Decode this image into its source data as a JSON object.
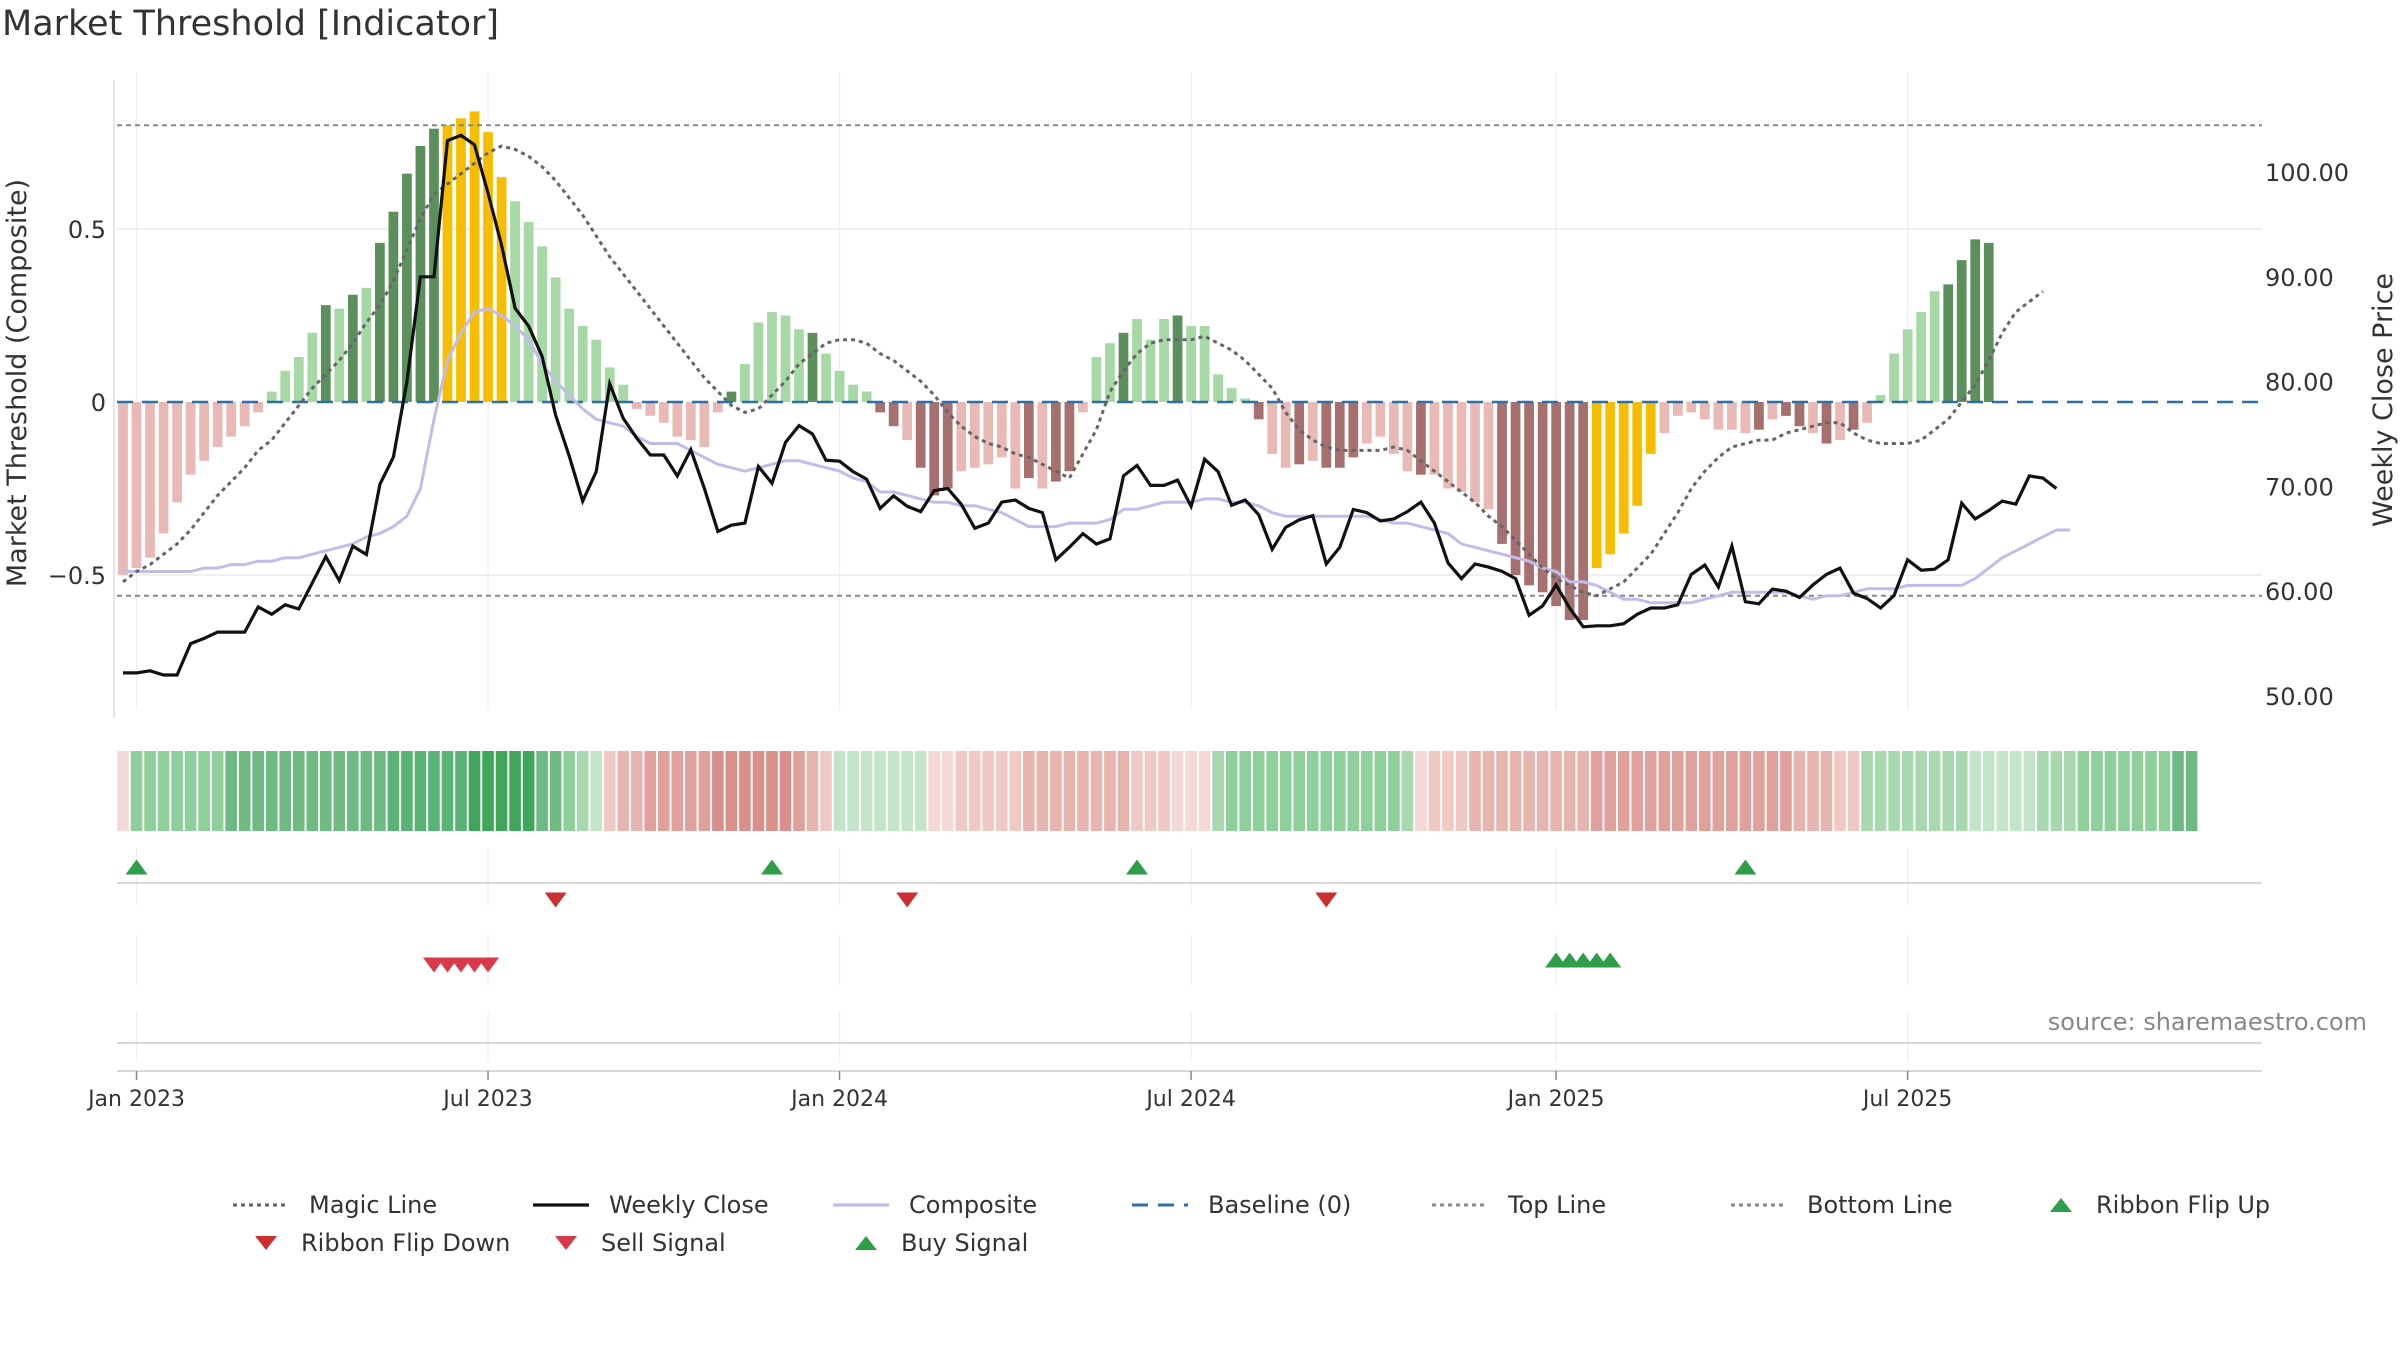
{
  "title": "Market Threshold [Indicator]",
  "source": "source: sharemaestro.com",
  "colors": {
    "bull_dark": "#5b8f5b",
    "bull_light": "#a6d9a6",
    "bear_dark": "#a6706e",
    "bear_light": "#e8b9b5",
    "extreme": "#f7bd00",
    "close_line": "#111111",
    "composite_line": "#c4bce8",
    "magic_line": "#666666",
    "baseline": "#2f6fa8",
    "buy": "#2e9e4a",
    "sell": "#d93a49",
    "flip_down": "#cc2f2f"
  },
  "chart_data": {
    "type": "bar",
    "title": "Market Threshold [Indicator]",
    "x_ticks": [
      "Jan 2023",
      "Jul 2023",
      "Jan 2024",
      "Jul 2024",
      "Jan 2025",
      "Jul 2025"
    ],
    "y_left": {
      "label": "Market Threshold (Composite)",
      "ticks": [
        "0.5",
        "0",
        "−0.5"
      ],
      "values": [
        0.5,
        0,
        -0.5
      ],
      "range": [
        -0.93,
        0.93
      ]
    },
    "y_right": {
      "label": "Weekly Close Price",
      "ticks": [
        "100.00",
        "90.00",
        "80.00",
        "70.00",
        "60.00",
        "50.00"
      ],
      "values": [
        100,
        90,
        80,
        70,
        60,
        50
      ],
      "range": [
        48,
        108
      ]
    },
    "top_line": 0.8,
    "bottom_line": -0.56,
    "grid": true,
    "start_date": "2022-12-26",
    "threshold_bars": [
      -0.5,
      -0.48,
      -0.45,
      -0.38,
      -0.29,
      -0.21,
      -0.17,
      -0.13,
      -0.1,
      -0.07,
      -0.03,
      0.03,
      0.09,
      0.13,
      0.2,
      0.28,
      0.27,
      0.31,
      0.33,
      0.46,
      0.55,
      0.66,
      0.74,
      0.79,
      0.8,
      0.82,
      0.84,
      0.78,
      0.65,
      0.58,
      0.52,
      0.45,
      0.36,
      0.27,
      0.22,
      0.18,
      0.1,
      0.05,
      -0.02,
      -0.04,
      -0.06,
      -0.1,
      -0.11,
      -0.13,
      -0.03,
      0.03,
      0.11,
      0.23,
      0.26,
      0.25,
      0.21,
      0.2,
      0.14,
      0.09,
      0.05,
      0.03,
      -0.03,
      -0.07,
      -0.11,
      -0.19,
      -0.27,
      -0.25,
      -0.2,
      -0.19,
      -0.18,
      -0.16,
      -0.25,
      -0.22,
      -0.25,
      -0.23,
      -0.2,
      -0.03,
      0.13,
      0.17,
      0.2,
      0.24,
      0.18,
      0.24,
      0.25,
      0.22,
      0.22,
      0.08,
      0.04,
      0.01,
      -0.05,
      -0.15,
      -0.19,
      -0.18,
      -0.17,
      -0.19,
      -0.19,
      -0.16,
      -0.12,
      -0.1,
      -0.15,
      -0.2,
      -0.21,
      -0.21,
      -0.25,
      -0.26,
      -0.29,
      -0.31,
      -0.41,
      -0.5,
      -0.53,
      -0.55,
      -0.59,
      -0.63,
      -0.63,
      -0.48,
      -0.44,
      -0.38,
      -0.3,
      -0.15,
      -0.09,
      -0.04,
      -0.03,
      -0.05,
      -0.08,
      -0.08,
      -0.09,
      -0.08,
      -0.05,
      -0.04,
      -0.07,
      -0.09,
      -0.12,
      -0.11,
      -0.08,
      -0.06,
      0.02,
      0.14,
      0.21,
      0.26,
      0.32,
      0.34,
      0.41,
      0.47,
      0.46
    ],
    "bar_styles": "LLLLLLLLLLLLLLLDLDLDDDDDXXXXXLLLLLLLLLLLLLLLLDLLLLLDLLLLDDLDDDLLLLLDLDDLLLDLLLDLLLLLDLLDLDDDLLLLDLLLLLDDDDDDDXXXXXLLLLLLLDLDDLDLDLLLLLLDDDDDL",
    "weekly_close": [
      52.2,
      52.2,
      52.4,
      52.0,
      52.0,
      55.0,
      55.5,
      56.1,
      56.1,
      56.1,
      58.5,
      57.8,
      58.7,
      58.3,
      60.8,
      63.3,
      61.0,
      64.3,
      63.5,
      70.2,
      72.8,
      80.0,
      90.0,
      90.0,
      103.0,
      103.5,
      102.6,
      98.0,
      93.0,
      87.0,
      85.3,
      82.4,
      76.8,
      72.9,
      68.6,
      71.4,
      79.8,
      76.5,
      74.6,
      73.0,
      73.0,
      71.0,
      73.5,
      69.8,
      65.7,
      66.3,
      66.5,
      71.9,
      70.3,
      74.2,
      75.8,
      75.0,
      72.5,
      72.4,
      71.4,
      70.7,
      67.9,
      69.1,
      68.1,
      67.6,
      69.6,
      69.8,
      68.3,
      66.0,
      66.5,
      68.5,
      68.7,
      67.9,
      67.5,
      63.0,
      64.2,
      65.5,
      64.5,
      65.0,
      71.0,
      72.0,
      70.1,
      70.1,
      70.6,
      68.1,
      72.6,
      71.4,
      68.2,
      68.7,
      67.3,
      64.0,
      66.1,
      66.8,
      67.2,
      62.6,
      64.2,
      67.8,
      67.5,
      66.7,
      66.9,
      67.6,
      68.5,
      66.5,
      62.7,
      61.2,
      62.6,
      62.3,
      61.9,
      61.2,
      57.7,
      58.6,
      60.6,
      58.4,
      56.6,
      56.7,
      56.7,
      56.9,
      57.8,
      58.4,
      58.4,
      58.7,
      61.6,
      62.5,
      60.4,
      64.3,
      59.0,
      58.8,
      60.2,
      60.0,
      59.4,
      60.6,
      61.6,
      62.2,
      59.8,
      59.3,
      58.4,
      59.6,
      63.0,
      62.0,
      62.1,
      63.0,
      68.4,
      66.9,
      67.7,
      68.6,
      68.3,
      71.0,
      70.8,
      69.8
    ],
    "composite": [
      -0.49,
      -0.49,
      -0.49,
      -0.49,
      -0.49,
      -0.49,
      -0.48,
      -0.48,
      -0.47,
      -0.47,
      -0.46,
      -0.46,
      -0.45,
      -0.45,
      -0.44,
      -0.43,
      -0.42,
      -0.41,
      -0.39,
      -0.38,
      -0.36,
      -0.33,
      -0.25,
      -0.05,
      0.12,
      0.2,
      0.26,
      0.27,
      0.25,
      0.22,
      0.18,
      0.11,
      0.06,
      0.02,
      -0.02,
      -0.05,
      -0.06,
      -0.07,
      -0.1,
      -0.12,
      -0.12,
      -0.12,
      -0.14,
      -0.16,
      -0.18,
      -0.19,
      -0.2,
      -0.19,
      -0.18,
      -0.17,
      -0.17,
      -0.18,
      -0.19,
      -0.2,
      -0.22,
      -0.23,
      -0.26,
      -0.26,
      -0.27,
      -0.28,
      -0.29,
      -0.29,
      -0.3,
      -0.3,
      -0.31,
      -0.32,
      -0.34,
      -0.36,
      -0.36,
      -0.36,
      -0.35,
      -0.35,
      -0.35,
      -0.34,
      -0.31,
      -0.31,
      -0.3,
      -0.29,
      -0.29,
      -0.29,
      -0.28,
      -0.28,
      -0.29,
      -0.29,
      -0.3,
      -0.32,
      -0.33,
      -0.33,
      -0.33,
      -0.33,
      -0.33,
      -0.33,
      -0.33,
      -0.34,
      -0.35,
      -0.35,
      -0.36,
      -0.37,
      -0.38,
      -0.41,
      -0.42,
      -0.43,
      -0.44,
      -0.45,
      -0.46,
      -0.48,
      -0.49,
      -0.52,
      -0.52,
      -0.53,
      -0.55,
      -0.57,
      -0.57,
      -0.58,
      -0.58,
      -0.58,
      -0.58,
      -0.57,
      -0.56,
      -0.55,
      -0.55,
      -0.55,
      -0.55,
      -0.55,
      -0.56,
      -0.57,
      -0.56,
      -0.56,
      -0.55,
      -0.54,
      -0.54,
      -0.54,
      -0.53,
      -0.53,
      -0.53,
      -0.53,
      -0.53,
      -0.51,
      -0.48,
      -0.45,
      -0.43,
      -0.41,
      -0.39,
      -0.37,
      -0.37
    ],
    "magic_line": [
      -0.52,
      -0.49,
      -0.47,
      -0.44,
      -0.41,
      -0.37,
      -0.32,
      -0.27,
      -0.23,
      -0.19,
      -0.14,
      -0.11,
      -0.06,
      -0.01,
      0.04,
      0.08,
      0.12,
      0.17,
      0.23,
      0.28,
      0.35,
      0.44,
      0.53,
      0.6,
      0.63,
      0.66,
      0.69,
      0.72,
      0.74,
      0.73,
      0.71,
      0.68,
      0.64,
      0.59,
      0.54,
      0.48,
      0.42,
      0.37,
      0.32,
      0.27,
      0.22,
      0.17,
      0.12,
      0.07,
      0.03,
      -0.01,
      -0.03,
      -0.02,
      0.02,
      0.06,
      0.11,
      0.14,
      0.17,
      0.18,
      0.18,
      0.17,
      0.14,
      0.12,
      0.09,
      0.06,
      0.02,
      -0.03,
      -0.07,
      -0.1,
      -0.12,
      -0.13,
      -0.15,
      -0.16,
      -0.18,
      -0.2,
      -0.22,
      -0.15,
      -0.08,
      0.03,
      0.09,
      0.14,
      0.17,
      0.18,
      0.18,
      0.18,
      0.19,
      0.17,
      0.15,
      0.12,
      0.08,
      0.04,
      -0.03,
      -0.08,
      -0.11,
      -0.13,
      -0.14,
      -0.14,
      -0.14,
      -0.14,
      -0.13,
      -0.14,
      -0.17,
      -0.2,
      -0.23,
      -0.26,
      -0.29,
      -0.33,
      -0.36,
      -0.4,
      -0.44,
      -0.48,
      -0.51,
      -0.53,
      -0.55,
      -0.56,
      -0.54,
      -0.52,
      -0.48,
      -0.44,
      -0.38,
      -0.32,
      -0.25,
      -0.2,
      -0.16,
      -0.13,
      -0.12,
      -0.11,
      -0.11,
      -0.09,
      -0.08,
      -0.07,
      -0.06,
      -0.06,
      -0.09,
      -0.11,
      -0.12,
      -0.12,
      -0.12,
      -0.11,
      -0.08,
      -0.05,
      0.0,
      0.05,
      0.12,
      0.2,
      0.26,
      0.29,
      0.32
    ],
    "ribbon_colors": [
      "#f4d8d5",
      "#8fcf9c",
      "#8fcf9c",
      "#8fcf9c",
      "#8fcf9c",
      "#8fcf9c",
      "#8fcf9c",
      "#8fcf9c",
      "#6fba83",
      "#6fba83",
      "#6fba83",
      "#6fba83",
      "#6fba83",
      "#6fba83",
      "#6fba83",
      "#6fba83",
      "#6fba83",
      "#6fba83",
      "#6fba83",
      "#6fba83",
      "#5ab375",
      "#5ab375",
      "#5ab375",
      "#5ab375",
      "#5ab375",
      "#5ab375",
      "#3fa65b",
      "#3fa65b",
      "#3fa65b",
      "#3fa65b",
      "#3fa65b",
      "#6fba83",
      "#6fba83",
      "#8fcf9c",
      "#a8d8b0",
      "#c4e4c9",
      "#f0c9c5",
      "#e8b4b0",
      "#e8b4b0",
      "#e0a19c",
      "#e0a19c",
      "#e0a19c",
      "#e0a19c",
      "#e0a19c",
      "#d9908b",
      "#d9908b",
      "#d9908b",
      "#d9908b",
      "#d9908b",
      "#d9908b",
      "#e0a19c",
      "#e8b4b0",
      "#f0c9c5",
      "#c4e4c9",
      "#c4e4c9",
      "#c4e4c9",
      "#c4e4c9",
      "#c4e4c9",
      "#c4e4c9",
      "#c4e4c9",
      "#f4d8d5",
      "#f4d8d5",
      "#f0c9c5",
      "#f0c9c5",
      "#f0c9c5",
      "#f0c9c5",
      "#f0c9c5",
      "#e8b4b0",
      "#e8b4b0",
      "#e8b4b0",
      "#e8b4b0",
      "#e8b4b0",
      "#e8b4b0",
      "#e8b4b0",
      "#e8b4b0",
      "#f0c9c5",
      "#f0c9c5",
      "#f0c9c5",
      "#f4d8d5",
      "#f4d8d5",
      "#f4d8d5",
      "#a8d8b0",
      "#8fcf9c",
      "#8fcf9c",
      "#8fcf9c",
      "#8fcf9c",
      "#8fcf9c",
      "#8fcf9c",
      "#8fcf9c",
      "#8fcf9c",
      "#8fcf9c",
      "#8fcf9c",
      "#8fcf9c",
      "#8fcf9c",
      "#8fcf9c",
      "#a8d8b0",
      "#f4d8d5",
      "#f0c9c5",
      "#f0c9c5",
      "#f0c9c5",
      "#e8b4b0",
      "#e8b4b0",
      "#e8b4b0",
      "#e8b4b0",
      "#e8b4b0",
      "#e8b4b0",
      "#e8b4b0",
      "#e8b4b0",
      "#e8b4b0",
      "#e0a19c",
      "#e0a19c",
      "#e0a19c",
      "#e0a19c",
      "#e0a19c",
      "#e0a19c",
      "#e0a19c",
      "#e0a19c",
      "#e0a19c",
      "#e0a19c",
      "#e0a19c",
      "#e0a19c",
      "#e0a19c",
      "#e0a19c",
      "#e0a19c",
      "#e8b4b0",
      "#e8b4b0",
      "#e8b4b0",
      "#f0c9c5",
      "#f0c9c5",
      "#a8d8b0",
      "#a8d8b0",
      "#a8d8b0",
      "#a8d8b0",
      "#a8d8b0",
      "#a8d8b0",
      "#a8d8b0",
      "#a8d8b0",
      "#c4e4c9",
      "#c4e4c9",
      "#c4e4c9",
      "#c4e4c9",
      "#c4e4c9",
      "#a8d8b0",
      "#a8d8b0",
      "#a8d8b0",
      "#8fcf9c",
      "#8fcf9c",
      "#8fcf9c",
      "#8fcf9c",
      "#8fcf9c",
      "#8fcf9c",
      "#8fcf9c",
      "#6fba83",
      "#6fba83"
    ],
    "ribbon_flip_up_dates": [
      "2023-01-02",
      "2023-11-27",
      "2024-06-03",
      "2025-04-14"
    ],
    "ribbon_flip_down_dates": [
      "2023-08-07",
      "2024-02-05",
      "2024-09-09"
    ],
    "sell_signal_dates": [
      "2023-06-05",
      "2023-06-12",
      "2023-06-19",
      "2023-06-26",
      "2023-07-03"
    ],
    "buy_signal_dates": [
      "2025-01-06",
      "2025-01-13",
      "2025-01-20",
      "2025-01-27",
      "2025-02-03"
    ]
  },
  "legend": [
    {
      "label": "Magic Line",
      "marker": "dotted-line",
      "color": "#666666"
    },
    {
      "label": "Weekly Close",
      "marker": "solid-line",
      "color": "#111111"
    },
    {
      "label": "Composite",
      "marker": "solid-line",
      "color": "#c4bce8"
    },
    {
      "label": "Baseline (0)",
      "marker": "dashed-line",
      "color": "#2f6fa8"
    },
    {
      "label": "Top Line",
      "marker": "dotted-line",
      "color": "#888888"
    },
    {
      "label": "Bottom Line",
      "marker": "dotted-line",
      "color": "#888888"
    },
    {
      "label": "Ribbon Flip Up",
      "marker": "triangle-up",
      "color": "#2e9e4a"
    },
    {
      "label": "Ribbon Flip Down",
      "marker": "triangle-down",
      "color": "#cc2f2f"
    },
    {
      "label": "Sell Signal",
      "marker": "triangle-down",
      "color": "#d93a49"
    },
    {
      "label": "Buy Signal",
      "marker": "triangle-up",
      "color": "#2e9e4a"
    }
  ]
}
